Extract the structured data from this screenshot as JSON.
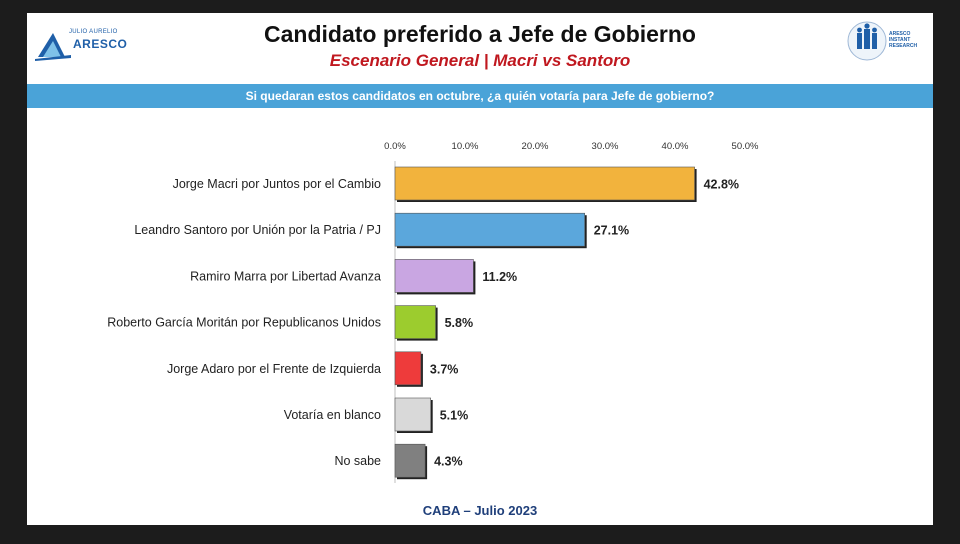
{
  "header": {
    "title": "Candidato preferido a Jefe de Gobierno",
    "subtitle": "Escenario General | Macri vs Santoro",
    "question": "Si quedaran estos candidatos en octubre, ¿a quién votaría para Jefe de gobierno?"
  },
  "logos": {
    "left_small": "JULIO AURELIO",
    "left_big": "ARESCO",
    "right_text": [
      "ARESCO",
      "INSTANT",
      "RESEARCH"
    ]
  },
  "footer": "CABA – Julio 2023",
  "chart_data": {
    "type": "bar",
    "orientation": "horizontal",
    "title": "Candidato preferido a Jefe de Gobierno",
    "categories": [
      "Jorge Macri por Juntos por el Cambio",
      "Leandro Santoro por Unión por la Patria / PJ",
      "Ramiro Marra por Libertad Avanza",
      "Roberto García Moritán por Republicanos Unidos",
      "Jorge Adaro por el Frente de Izquierda",
      "Votaría en blanco",
      "No sabe"
    ],
    "values": [
      42.8,
      27.1,
      11.2,
      5.8,
      3.7,
      5.1,
      4.3
    ],
    "value_labels": [
      "42.8%",
      "27.1%",
      "11.2%",
      "5.8%",
      "3.7%",
      "5.1%",
      "4.3%"
    ],
    "colors": [
      "#f2b33d",
      "#5ba7dc",
      "#c9a6e2",
      "#9ccc2e",
      "#ee3b3b",
      "#d9d9d9",
      "#808080"
    ],
    "xlim": [
      0,
      50
    ],
    "xticks": [
      "0.0%",
      "10.0%",
      "20.0%",
      "30.0%",
      "40.0%",
      "50.0%"
    ],
    "xaxis_position": "top",
    "grid": false,
    "legend": "none"
  }
}
